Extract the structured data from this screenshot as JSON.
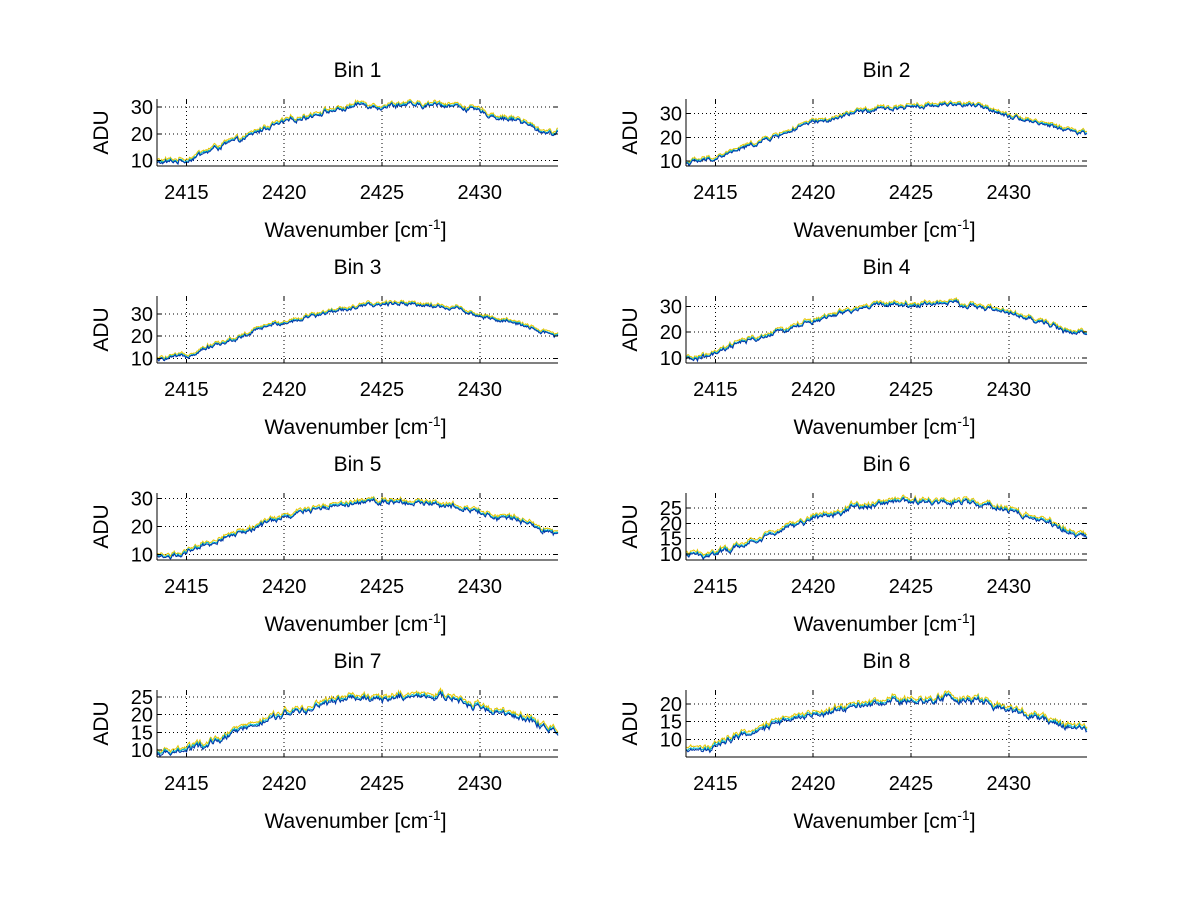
{
  "chart_data": [
    {
      "type": "line",
      "title": "Bin 1",
      "xlabel": "Wavenumber [cm",
      "xlabel_sup": "-1",
      "xlabel_end": "]",
      "ylabel": "ADU",
      "xlim": [
        2413.5,
        2434
      ],
      "ylim": [
        8,
        33
      ],
      "xticks": [
        2415,
        2420,
        2425,
        2430
      ],
      "yticks": [
        10,
        20,
        30
      ],
      "grid": true,
      "profile": [
        [
          2413.5,
          9
        ],
        [
          2415,
          10
        ],
        [
          2416,
          13
        ],
        [
          2417,
          16
        ],
        [
          2418,
          18
        ],
        [
          2419,
          22
        ],
        [
          2420,
          24
        ],
        [
          2421,
          26
        ],
        [
          2422,
          28
        ],
        [
          2423,
          29
        ],
        [
          2424,
          31
        ],
        [
          2425,
          30
        ],
        [
          2426,
          31
        ],
        [
          2427,
          30
        ],
        [
          2428,
          31
        ],
        [
          2429,
          30
        ],
        [
          2430,
          28
        ],
        [
          2431,
          26
        ],
        [
          2432,
          25
        ],
        [
          2433,
          21
        ],
        [
          2434,
          20
        ]
      ],
      "series": [
        {
          "name": "yellow",
          "color": "#e6c700",
          "offset": 1.0
        },
        {
          "name": "cyan",
          "color": "#00b5c8",
          "offset": 0.4
        },
        {
          "name": "blue",
          "color": "#0033a8",
          "offset": 0.0
        }
      ]
    },
    {
      "type": "line",
      "title": "Bin 2",
      "xlabel": "Wavenumber [cm",
      "xlabel_sup": "-1",
      "xlabel_end": "]",
      "ylabel": "ADU",
      "xlim": [
        2413.5,
        2434
      ],
      "ylim": [
        8,
        36
      ],
      "xticks": [
        2415,
        2420,
        2425,
        2430
      ],
      "yticks": [
        10,
        20,
        30
      ],
      "grid": true,
      "profile": [
        [
          2413.5,
          9
        ],
        [
          2415,
          11
        ],
        [
          2416,
          14
        ],
        [
          2417,
          17
        ],
        [
          2418,
          20
        ],
        [
          2419,
          23
        ],
        [
          2420,
          26
        ],
        [
          2421,
          27
        ],
        [
          2422,
          30
        ],
        [
          2423,
          31
        ],
        [
          2424,
          32
        ],
        [
          2425,
          33
        ],
        [
          2426,
          33
        ],
        [
          2427,
          34
        ],
        [
          2428,
          33
        ],
        [
          2429,
          32
        ],
        [
          2430,
          29
        ],
        [
          2431,
          27
        ],
        [
          2432,
          25
        ],
        [
          2433,
          23
        ],
        [
          2434,
          21
        ]
      ],
      "series": [
        {
          "name": "yellow",
          "color": "#e6c700",
          "offset": 1.0
        },
        {
          "name": "cyan",
          "color": "#00b5c8",
          "offset": 0.4
        },
        {
          "name": "blue",
          "color": "#0033a8",
          "offset": 0.0
        }
      ]
    },
    {
      "type": "line",
      "title": "Bin 3",
      "xlabel": "Wavenumber [cm",
      "xlabel_sup": "-1",
      "xlabel_end": "]",
      "ylabel": "ADU",
      "xlim": [
        2413.5,
        2434
      ],
      "ylim": [
        8,
        38
      ],
      "xticks": [
        2415,
        2420,
        2425,
        2430
      ],
      "yticks": [
        10,
        20,
        30
      ],
      "grid": true,
      "profile": [
        [
          2413.5,
          9
        ],
        [
          2415,
          11
        ],
        [
          2416,
          15
        ],
        [
          2417,
          17
        ],
        [
          2418,
          20
        ],
        [
          2419,
          24
        ],
        [
          2420,
          26
        ],
        [
          2421,
          28
        ],
        [
          2422,
          30
        ],
        [
          2423,
          32
        ],
        [
          2424,
          33
        ],
        [
          2425,
          34
        ],
        [
          2426,
          35
        ],
        [
          2427,
          34
        ],
        [
          2428,
          33
        ],
        [
          2429,
          32
        ],
        [
          2430,
          29
        ],
        [
          2431,
          27
        ],
        [
          2432,
          25
        ],
        [
          2433,
          22
        ],
        [
          2434,
          20
        ]
      ],
      "series": [
        {
          "name": "yellow",
          "color": "#e6c700",
          "offset": 1.0
        },
        {
          "name": "cyan",
          "color": "#00b5c8",
          "offset": 0.4
        },
        {
          "name": "blue",
          "color": "#0033a8",
          "offset": 0.0
        }
      ]
    },
    {
      "type": "line",
      "title": "Bin 4",
      "xlabel": "Wavenumber [cm",
      "xlabel_sup": "-1",
      "xlabel_end": "]",
      "ylabel": "ADU",
      "xlim": [
        2413.5,
        2434
      ],
      "ylim": [
        8,
        34
      ],
      "xticks": [
        2415,
        2420,
        2425,
        2430
      ],
      "yticks": [
        10,
        20,
        30
      ],
      "grid": true,
      "profile": [
        [
          2413.5,
          9
        ],
        [
          2415,
          11
        ],
        [
          2416,
          15
        ],
        [
          2417,
          17
        ],
        [
          2418,
          19
        ],
        [
          2419,
          22
        ],
        [
          2420,
          24
        ],
        [
          2421,
          26
        ],
        [
          2422,
          28
        ],
        [
          2423,
          30
        ],
        [
          2424,
          31
        ],
        [
          2425,
          30
        ],
        [
          2426,
          31
        ],
        [
          2427,
          31
        ],
        [
          2428,
          30
        ],
        [
          2429,
          29
        ],
        [
          2430,
          27
        ],
        [
          2431,
          25
        ],
        [
          2432,
          23
        ],
        [
          2433,
          20
        ],
        [
          2434,
          19
        ]
      ],
      "series": [
        {
          "name": "yellow",
          "color": "#e6c700",
          "offset": 1.0
        },
        {
          "name": "cyan",
          "color": "#00b5c8",
          "offset": 0.4
        },
        {
          "name": "blue",
          "color": "#0033a8",
          "offset": 0.0
        }
      ]
    },
    {
      "type": "line",
      "title": "Bin 5",
      "xlabel": "Wavenumber [cm",
      "xlabel_sup": "-1",
      "xlabel_end": "]",
      "ylabel": "ADU",
      "xlim": [
        2413.5,
        2434
      ],
      "ylim": [
        8,
        32
      ],
      "xticks": [
        2415,
        2420,
        2425,
        2430
      ],
      "yticks": [
        10,
        20,
        30
      ],
      "grid": true,
      "profile": [
        [
          2413.5,
          9
        ],
        [
          2415,
          10
        ],
        [
          2416,
          13
        ],
        [
          2417,
          16
        ],
        [
          2418,
          18
        ],
        [
          2419,
          21
        ],
        [
          2420,
          23
        ],
        [
          2421,
          25
        ],
        [
          2422,
          27
        ],
        [
          2423,
          28
        ],
        [
          2424,
          29
        ],
        [
          2425,
          29
        ],
        [
          2426,
          29
        ],
        [
          2427,
          28
        ],
        [
          2428,
          28
        ],
        [
          2429,
          27
        ],
        [
          2430,
          25
        ],
        [
          2431,
          23
        ],
        [
          2432,
          22
        ],
        [
          2433,
          19
        ],
        [
          2434,
          17
        ]
      ],
      "series": [
        {
          "name": "yellow",
          "color": "#e6c700",
          "offset": 1.0
        },
        {
          "name": "cyan",
          "color": "#00b5c8",
          "offset": 0.4
        },
        {
          "name": "blue",
          "color": "#0033a8",
          "offset": 0.0
        }
      ]
    },
    {
      "type": "line",
      "title": "Bin 6",
      "xlabel": "Wavenumber [cm",
      "xlabel_sup": "-1",
      "xlabel_end": "]",
      "ylabel": "ADU",
      "xlim": [
        2413.5,
        2434
      ],
      "ylim": [
        8,
        30
      ],
      "xticks": [
        2415,
        2420,
        2425,
        2430
      ],
      "yticks": [
        10,
        15,
        20,
        25
      ],
      "grid": true,
      "profile": [
        [
          2413.5,
          9
        ],
        [
          2415,
          10
        ],
        [
          2416,
          12
        ],
        [
          2417,
          14
        ],
        [
          2418,
          17
        ],
        [
          2419,
          19
        ],
        [
          2420,
          22
        ],
        [
          2421,
          23
        ],
        [
          2422,
          25
        ],
        [
          2423,
          26
        ],
        [
          2424,
          27
        ],
        [
          2425,
          27
        ],
        [
          2426,
          27
        ],
        [
          2427,
          27
        ],
        [
          2428,
          27
        ],
        [
          2429,
          26
        ],
        [
          2430,
          24
        ],
        [
          2431,
          22
        ],
        [
          2432,
          20
        ],
        [
          2433,
          17
        ],
        [
          2434,
          15
        ]
      ],
      "series": [
        {
          "name": "yellow",
          "color": "#e6c700",
          "offset": 1.0
        },
        {
          "name": "cyan",
          "color": "#00b5c8",
          "offset": 0.4
        },
        {
          "name": "blue",
          "color": "#0033a8",
          "offset": 0.0
        }
      ]
    },
    {
      "type": "line",
      "title": "Bin 7",
      "xlabel": "Wavenumber [cm",
      "xlabel_sup": "-1",
      "xlabel_end": "]",
      "ylabel": "ADU",
      "xlim": [
        2413.5,
        2434
      ],
      "ylim": [
        8,
        27
      ],
      "xticks": [
        2415,
        2420,
        2425,
        2430
      ],
      "yticks": [
        10,
        15,
        20,
        25
      ],
      "grid": true,
      "profile": [
        [
          2413.5,
          8.5
        ],
        [
          2415,
          10
        ],
        [
          2416,
          11
        ],
        [
          2417,
          13
        ],
        [
          2418,
          16
        ],
        [
          2419,
          18
        ],
        [
          2420,
          20
        ],
        [
          2421,
          21
        ],
        [
          2422,
          23
        ],
        [
          2423,
          24
        ],
        [
          2424,
          25
        ],
        [
          2425,
          24
        ],
        [
          2426,
          25
        ],
        [
          2427,
          25
        ],
        [
          2428,
          25
        ],
        [
          2429,
          24
        ],
        [
          2430,
          22
        ],
        [
          2431,
          21
        ],
        [
          2432,
          19
        ],
        [
          2433,
          17
        ],
        [
          2434,
          15
        ]
      ],
      "series": [
        {
          "name": "yellow",
          "color": "#e6c700",
          "offset": 1.0
        },
        {
          "name": "cyan",
          "color": "#00b5c8",
          "offset": 0.4
        },
        {
          "name": "blue",
          "color": "#0033a8",
          "offset": 0.0
        }
      ]
    },
    {
      "type": "line",
      "title": "Bin 8",
      "xlabel": "Wavenumber [cm",
      "xlabel_sup": "-1",
      "xlabel_end": "]",
      "ylabel": "ADU",
      "xlim": [
        2413.5,
        2434
      ],
      "ylim": [
        5,
        24
      ],
      "xticks": [
        2415,
        2420,
        2425,
        2430
      ],
      "yticks": [
        10,
        15,
        20
      ],
      "grid": true,
      "profile": [
        [
          2413.5,
          6
        ],
        [
          2415,
          8
        ],
        [
          2416,
          10
        ],
        [
          2417,
          12
        ],
        [
          2418,
          14
        ],
        [
          2419,
          16
        ],
        [
          2420,
          17
        ],
        [
          2421,
          18
        ],
        [
          2422,
          19
        ],
        [
          2423,
          20
        ],
        [
          2424,
          21
        ],
        [
          2425,
          21
        ],
        [
          2426,
          21
        ],
        [
          2427,
          22
        ],
        [
          2428,
          21
        ],
        [
          2429,
          20
        ],
        [
          2430,
          18
        ],
        [
          2431,
          17
        ],
        [
          2432,
          15
        ],
        [
          2433,
          13
        ],
        [
          2434,
          13
        ]
      ],
      "series": [
        {
          "name": "yellow",
          "color": "#e6c700",
          "offset": 1.0
        },
        {
          "name": "cyan",
          "color": "#00b5c8",
          "offset": 0.4
        },
        {
          "name": "blue",
          "color": "#0033a8",
          "offset": 0.0
        }
      ]
    }
  ]
}
